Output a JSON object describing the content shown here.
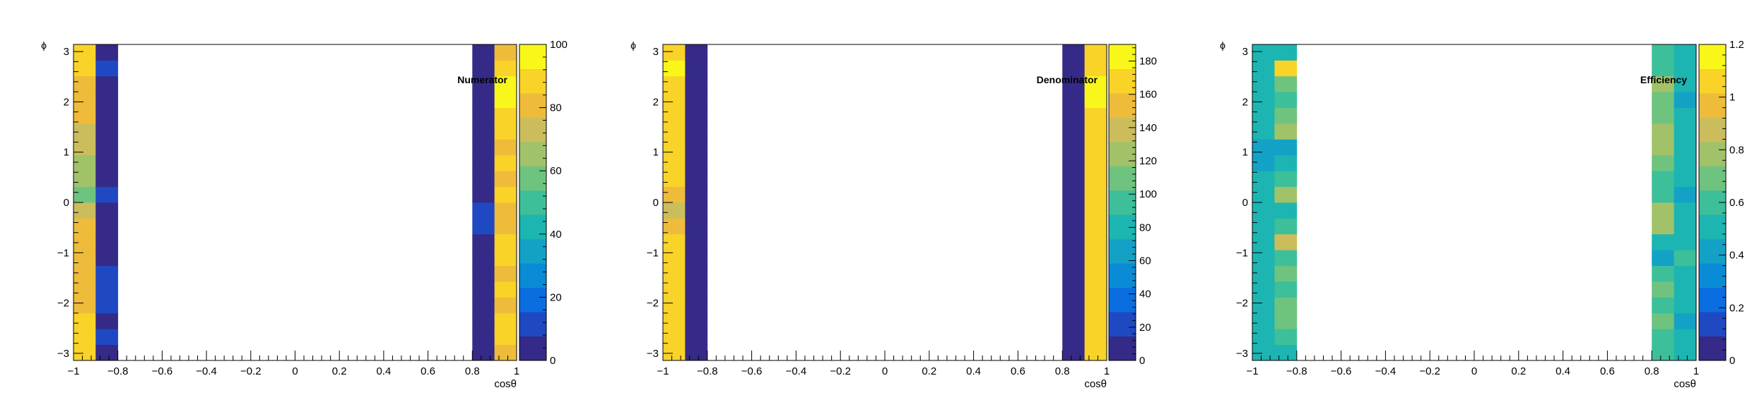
{
  "palette": [
    "#352a87",
    "#1f49c3",
    "#0b6ee0",
    "#0a8bd6",
    "#13a2c6",
    "#1cb5b2",
    "#3dbf9a",
    "#6ec47f",
    "#a2c269",
    "#cbbd5b",
    "#eebc3a",
    "#f9d328",
    "#f9f719"
  ],
  "chart_data": [
    {
      "type": "heatmap",
      "title": "Numerator",
      "xlabel": "cosθ",
      "ylabel": "ϕ",
      "xlim": [
        -1,
        1
      ],
      "ylim": [
        -3.1416,
        3.1416
      ],
      "x_ticks": [
        "−1",
        "−0.8",
        "−0.6",
        "−0.4",
        "−0.2",
        "0",
        "0.2",
        "0.4",
        "0.6",
        "0.8",
        "1"
      ],
      "y_ticks": [
        "−3",
        "−2",
        "−1",
        "0",
        "1",
        "2",
        "3"
      ],
      "z_range": [
        0,
        100
      ],
      "z_ticks": [
        "0",
        "20",
        "40",
        "60",
        "80",
        "100"
      ],
      "x_bin_edges": [
        -1,
        -0.9,
        -0.8,
        0.8,
        0.9,
        1
      ],
      "n_phi_bins": 20,
      "columns": [
        {
          "x_range": [
            -1,
            -0.9
          ],
          "values": [
            88,
            90,
            85,
            82,
            80,
            78,
            82,
            84,
            78,
            72,
            55,
            62,
            68,
            75,
            70,
            80,
            84,
            78,
            88,
            92
          ]
        },
        {
          "x_range": [
            -0.9,
            -0.8
          ],
          "values": [
            2,
            8,
            4,
            10,
            8,
            12,
            5,
            4,
            3,
            2,
            12,
            3,
            4,
            4,
            3,
            2,
            3,
            2,
            12,
            4
          ]
        },
        {
          "x_range": [
            0.8,
            0.9
          ],
          "values": [
            2,
            2,
            2,
            2,
            2,
            2,
            2,
            2,
            12,
            14,
            2,
            2,
            2,
            2,
            2,
            2,
            2,
            2,
            2,
            2
          ]
        },
        {
          "x_range": [
            0.9,
            1
          ],
          "values": [
            84,
            86,
            88,
            84,
            86,
            84,
            88,
            86,
            84,
            84,
            86,
            84,
            86,
            84,
            88,
            86,
            96,
            94,
            86,
            84
          ]
        }
      ]
    },
    {
      "type": "heatmap",
      "title": "Denominator",
      "xlabel": "cosθ",
      "ylabel": "ϕ",
      "xlim": [
        -1,
        1
      ],
      "ylim": [
        -3.1416,
        3.1416
      ],
      "x_ticks": [
        "−1",
        "−0.8",
        "−0.6",
        "−0.4",
        "−0.2",
        "0",
        "0.2",
        "0.4",
        "0.6",
        "0.8",
        "1"
      ],
      "y_ticks": [
        "−3",
        "−2",
        "−1",
        "0",
        "1",
        "2",
        "3"
      ],
      "z_range": [
        0,
        190
      ],
      "z_ticks": [
        "0",
        "20",
        "40",
        "60",
        "80",
        "100",
        "120",
        "140",
        "160",
        "180"
      ],
      "x_bin_edges": [
        -1,
        -0.9,
        -0.8,
        0.8,
        0.9,
        1
      ],
      "n_phi_bins": 20,
      "columns": [
        {
          "x_range": [
            -1,
            -0.9
          ],
          "values": [
            170,
            172,
            168,
            166,
            170,
            168,
            166,
            168,
            150,
            142,
            160,
            166,
            168,
            166,
            168,
            172,
            168,
            166,
            176,
            172
          ]
        },
        {
          "x_range": [
            -0.9,
            -0.8
          ],
          "values": [
            3,
            3,
            3,
            3,
            3,
            3,
            10,
            3,
            3,
            3,
            3,
            3,
            3,
            3,
            3,
            3,
            3,
            3,
            3,
            3
          ]
        },
        {
          "x_range": [
            0.8,
            0.9
          ],
          "values": [
            3,
            3,
            3,
            3,
            3,
            3,
            3,
            3,
            3,
            3,
            3,
            3,
            3,
            3,
            3,
            3,
            3,
            3,
            3,
            3
          ]
        },
        {
          "x_range": [
            0.9,
            1
          ],
          "values": [
            168,
            170,
            166,
            168,
            172,
            168,
            166,
            168,
            170,
            168,
            170,
            168,
            166,
            168,
            170,
            172,
            180,
            182,
            172,
            168
          ]
        }
      ]
    },
    {
      "type": "heatmap",
      "title": "Efficiency",
      "xlabel": "cosθ",
      "ylabel": "ϕ",
      "xlim": [
        -1,
        1
      ],
      "ylim": [
        -3.1416,
        3.1416
      ],
      "x_ticks": [
        "−1",
        "−0.8",
        "−0.6",
        "−0.4",
        "−0.2",
        "0",
        "0.2",
        "0.4",
        "0.6",
        "0.8",
        "1"
      ],
      "y_ticks": [
        "−3",
        "−2",
        "−1",
        "0",
        "1",
        "2",
        "3"
      ],
      "z_range": [
        0,
        1.2
      ],
      "z_ticks": [
        "0",
        "0.2",
        "0.4",
        "0.6",
        "0.8",
        "1",
        "1.2"
      ],
      "x_bin_edges": [
        -1,
        -0.9,
        -0.8,
        0.8,
        0.9,
        1
      ],
      "n_phi_bins": 20,
      "columns": [
        {
          "x_range": [
            -1,
            -0.9
          ],
          "values": [
            0.55,
            0.55,
            0.55,
            0.5,
            0.5,
            0.5,
            0.55,
            0.5,
            0.5,
            0.5,
            0.55,
            0.5,
            0.45,
            0.45,
            0.5,
            0.5,
            0.5,
            0.5,
            0.5,
            0.55
          ]
        },
        {
          "x_range": [
            -0.9,
            -0.8
          ],
          "values": [
            0.5,
            0.6,
            0.65,
            0.7,
            0.6,
            0.7,
            0.6,
            0.85,
            0.6,
            0.5,
            0.75,
            0.6,
            0.55,
            0.45,
            0.75,
            0.7,
            0.6,
            0.7,
            1.05,
            0.55
          ]
        },
        {
          "x_range": [
            0.8,
            0.9
          ],
          "values": [
            0.6,
            0.6,
            0.65,
            0.6,
            0.7,
            0.6,
            0.4,
            0.55,
            0.75,
            0.8,
            0.6,
            0.6,
            0.7,
            0.8,
            0.75,
            0.65,
            0.7,
            0.75,
            0.6,
            0.6
          ]
        },
        {
          "x_range": [
            0.9,
            1
          ],
          "values": [
            0.5,
            0.5,
            0.45,
            0.5,
            0.5,
            0.5,
            0.6,
            0.5,
            0.5,
            0.5,
            0.45,
            0.5,
            0.5,
            0.5,
            0.5,
            0.5,
            0.45,
            0.5,
            0.5,
            0.55
          ]
        }
      ]
    }
  ]
}
